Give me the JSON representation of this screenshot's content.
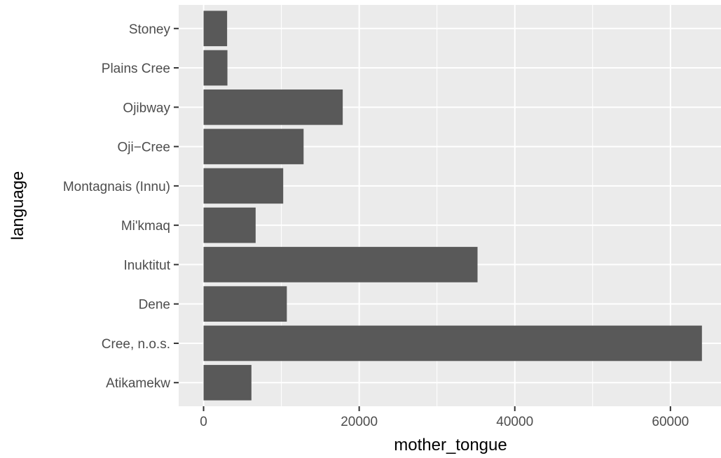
{
  "chart_data": {
    "type": "bar",
    "orientation": "horizontal",
    "xlabel": "mother_tongue",
    "ylabel": "language",
    "categories": [
      "Atikamekw",
      "Cree, n.o.s.",
      "Dene",
      "Inuktitut",
      "Mi'kmaq",
      "Montagnais (Innu)",
      "Oji−Cree",
      "Ojibway",
      "Plains Cree",
      "Stoney"
    ],
    "values": [
      6150,
      64050,
      10700,
      35210,
      6690,
      10235,
      12855,
      17885,
      3065,
      3025
    ],
    "xlim": [
      -3200,
      66500
    ],
    "x_ticks": [
      0,
      20000,
      40000,
      60000
    ],
    "x_tick_labels": [
      "0",
      "20000",
      "40000",
      "60000"
    ],
    "grid": true,
    "legend": "none",
    "colors": {
      "panel": "#ebebeb",
      "grid_major": "#ffffff",
      "bar": "#595959",
      "tick": "#333333"
    }
  }
}
